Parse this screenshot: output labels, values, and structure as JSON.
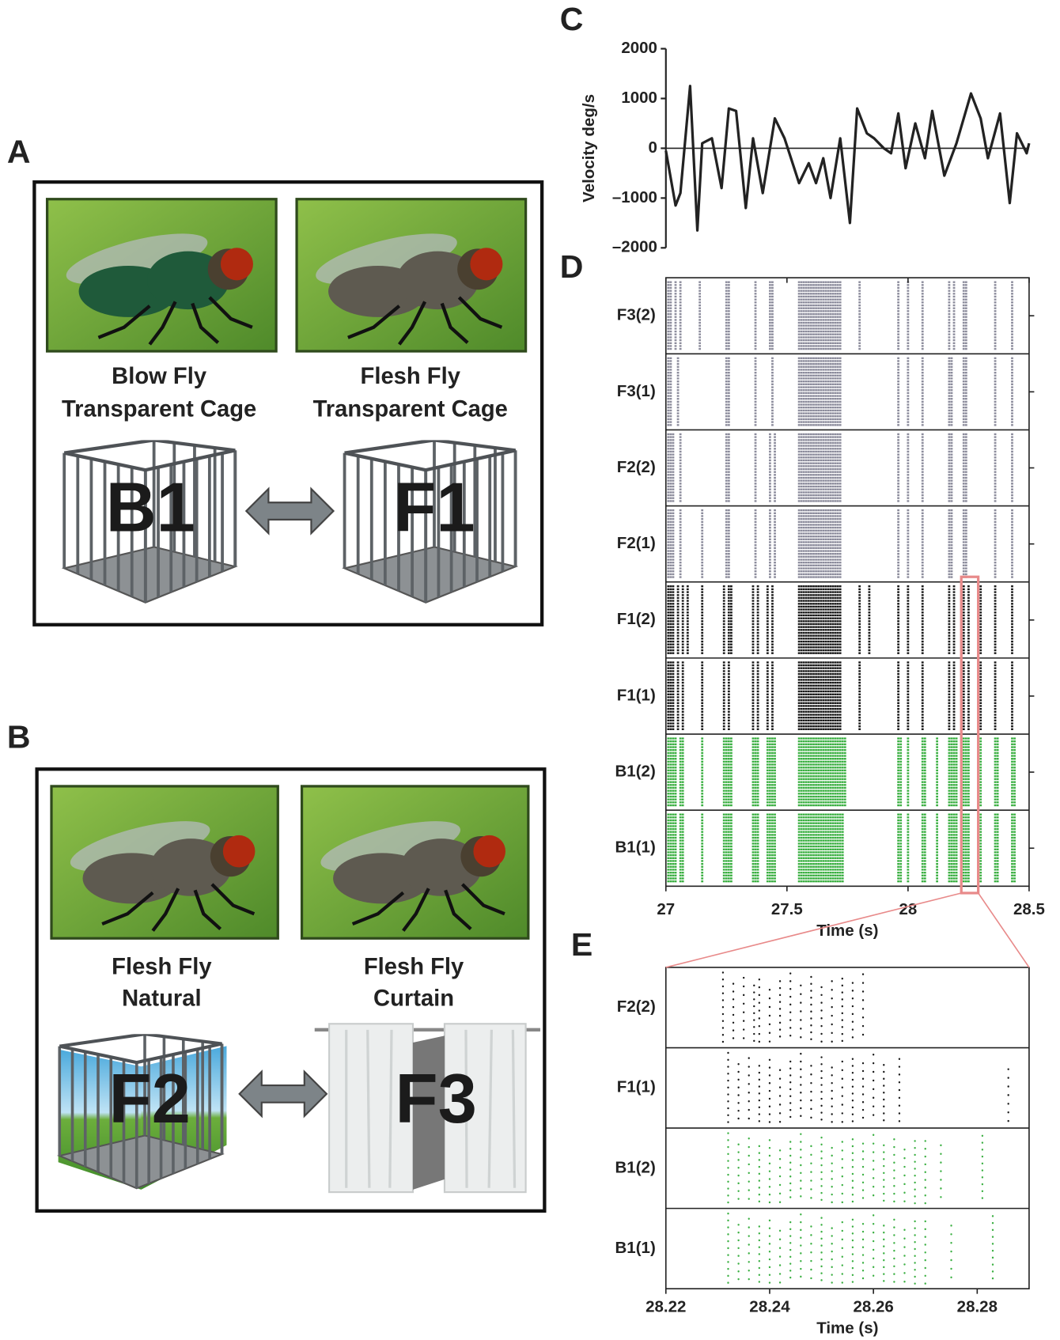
{
  "figure": {
    "panel_labels": [
      "A",
      "B",
      "C",
      "D",
      "E"
    ]
  },
  "panel_a": {
    "left": {
      "title": "Blow Fly",
      "subtitle": "Transparent Cage",
      "cage": "B1"
    },
    "right": {
      "title": "Flesh Fly",
      "subtitle": "Transparent Cage",
      "cage": "F1"
    }
  },
  "panel_b": {
    "left": {
      "title": "Flesh Fly",
      "subtitle": "Natural",
      "cage": "F2"
    },
    "right": {
      "title": "Flesh Fly",
      "subtitle": "Curtain",
      "cage": "F3"
    }
  },
  "chart_data": [
    {
      "type": "line",
      "ylabel": "Velocity deg/s",
      "color": "#222222",
      "x": [
        27.0,
        27.04,
        27.06,
        27.1,
        27.13,
        27.15,
        27.19,
        27.23,
        27.26,
        27.29,
        27.33,
        27.36,
        27.4,
        27.45,
        27.49,
        27.55,
        27.59,
        27.62,
        27.65,
        27.68,
        27.72,
        27.76,
        27.79,
        27.83,
        27.86,
        27.9,
        27.93,
        27.96,
        27.99,
        28.03,
        28.07,
        28.1,
        28.15,
        28.2,
        28.26,
        28.3,
        28.33,
        28.38,
        28.42,
        28.45,
        28.49,
        28.5
      ],
      "values": [
        -50,
        -1150,
        -900,
        1250,
        -1650,
        100,
        200,
        -800,
        800,
        750,
        -1200,
        200,
        -900,
        600,
        200,
        -700,
        -300,
        -700,
        -200,
        -1000,
        200,
        -1500,
        800,
        300,
        200,
        0,
        -100,
        700,
        -400,
        500,
        -200,
        750,
        -550,
        100,
        1100,
        600,
        -200,
        700,
        -1100,
        300,
        -100,
        100
      ],
      "xlim": [
        27,
        28.5
      ],
      "ylim": [
        -2000,
        2000
      ],
      "yticks": [
        {
          "value": -2000,
          "label": "–2000"
        },
        {
          "value": -1000,
          "label": "–1000"
        },
        0,
        1000,
        2000
      ]
    },
    {
      "type": "raster",
      "xlabel": "Time (s)",
      "xlim": [
        27,
        28.5
      ],
      "xticks": [
        27,
        27.5,
        28,
        28.5
      ],
      "series": [
        {
          "name": "F3(2)",
          "color": "#8c8c9c",
          "values": [
            27.01,
            27.02,
            27.04,
            27.06,
            27.14,
            27.25,
            27.26,
            27.37,
            27.43,
            27.44,
            27.55,
            27.56,
            27.57,
            27.58,
            27.59,
            27.6,
            27.61,
            27.62,
            27.63,
            27.64,
            27.65,
            27.66,
            27.67,
            27.68,
            27.69,
            27.7,
            27.71,
            27.72,
            27.8,
            27.96,
            28.0,
            28.06,
            28.17,
            28.19,
            28.23,
            28.24,
            28.36,
            28.43
          ]
        },
        {
          "name": "F3(1)",
          "color": "#8c8c9c",
          "values": [
            27.01,
            27.02,
            27.05,
            27.25,
            27.26,
            27.37,
            27.44,
            27.55,
            27.56,
            27.57,
            27.58,
            27.59,
            27.6,
            27.61,
            27.62,
            27.63,
            27.64,
            27.65,
            27.66,
            27.67,
            27.68,
            27.69,
            27.7,
            27.71,
            27.72,
            27.96,
            28.0,
            28.06,
            28.17,
            28.18,
            28.23,
            28.24,
            28.36,
            28.43
          ]
        },
        {
          "name": "F2(2)",
          "color": "#8c8c9c",
          "values": [
            27.01,
            27.02,
            27.03,
            27.06,
            27.25,
            27.26,
            27.37,
            27.43,
            27.45,
            27.55,
            27.56,
            27.57,
            27.58,
            27.59,
            27.6,
            27.61,
            27.62,
            27.63,
            27.64,
            27.65,
            27.66,
            27.67,
            27.68,
            27.69,
            27.7,
            27.71,
            27.72,
            27.96,
            28.0,
            28.06,
            28.17,
            28.18,
            28.23,
            28.24,
            28.36,
            28.43
          ]
        },
        {
          "name": "F2(1)",
          "color": "#8c8c9c",
          "values": [
            27.01,
            27.02,
            27.03,
            27.06,
            27.15,
            27.25,
            27.26,
            27.37,
            27.43,
            27.45,
            27.55,
            27.56,
            27.57,
            27.58,
            27.59,
            27.6,
            27.61,
            27.62,
            27.63,
            27.64,
            27.65,
            27.66,
            27.67,
            27.68,
            27.69,
            27.7,
            27.71,
            27.72,
            27.96,
            28.0,
            28.06,
            28.17,
            28.18,
            28.23,
            28.24,
            28.36,
            28.43
          ]
        },
        {
          "name": "F1(2)",
          "color": "#1a1a1a",
          "values": [
            27.01,
            27.02,
            27.03,
            27.05,
            27.07,
            27.09,
            27.15,
            27.24,
            27.26,
            27.27,
            27.36,
            27.38,
            27.42,
            27.44,
            27.55,
            27.56,
            27.57,
            27.58,
            27.59,
            27.6,
            27.61,
            27.62,
            27.63,
            27.64,
            27.65,
            27.66,
            27.67,
            27.68,
            27.69,
            27.7,
            27.71,
            27.72,
            27.8,
            27.84,
            27.96,
            28.0,
            28.06,
            28.17,
            28.19,
            28.23,
            28.25,
            28.3,
            28.36,
            28.43
          ]
        },
        {
          "name": "F1(1)",
          "color": "#1a1a1a",
          "values": [
            27.01,
            27.02,
            27.03,
            27.05,
            27.07,
            27.15,
            27.24,
            27.26,
            27.36,
            27.38,
            27.42,
            27.44,
            27.55,
            27.56,
            27.57,
            27.58,
            27.59,
            27.6,
            27.61,
            27.62,
            27.63,
            27.64,
            27.65,
            27.66,
            27.67,
            27.68,
            27.69,
            27.7,
            27.71,
            27.72,
            27.8,
            27.96,
            28.0,
            28.06,
            28.17,
            28.19,
            28.23,
            28.25,
            28.3,
            28.36,
            28.43
          ]
        },
        {
          "name": "B1(2)",
          "color": "#3cb043",
          "values": [
            27.01,
            27.02,
            27.03,
            27.04,
            27.06,
            27.07,
            27.15,
            27.24,
            27.25,
            27.26,
            27.27,
            27.36,
            27.37,
            27.38,
            27.42,
            27.43,
            27.44,
            27.45,
            27.55,
            27.56,
            27.57,
            27.58,
            27.59,
            27.6,
            27.61,
            27.62,
            27.63,
            27.64,
            27.65,
            27.66,
            27.67,
            27.68,
            27.69,
            27.7,
            27.71,
            27.72,
            27.73,
            27.74,
            27.96,
            27.97,
            28.0,
            28.06,
            28.07,
            28.12,
            28.17,
            28.18,
            28.19,
            28.2,
            28.23,
            28.24,
            28.25,
            28.3,
            28.36,
            28.37,
            28.43,
            28.44
          ]
        },
        {
          "name": "B1(1)",
          "color": "#3cb043",
          "values": [
            27.01,
            27.02,
            27.03,
            27.04,
            27.06,
            27.07,
            27.15,
            27.24,
            27.25,
            27.26,
            27.27,
            27.36,
            27.37,
            27.38,
            27.42,
            27.43,
            27.44,
            27.45,
            27.55,
            27.56,
            27.57,
            27.58,
            27.59,
            27.6,
            27.61,
            27.62,
            27.63,
            27.64,
            27.65,
            27.66,
            27.67,
            27.68,
            27.69,
            27.7,
            27.71,
            27.72,
            27.73,
            27.96,
            27.97,
            28.0,
            28.06,
            28.07,
            28.12,
            28.17,
            28.18,
            28.19,
            28.2,
            28.23,
            28.24,
            28.25,
            28.3,
            28.36,
            28.37,
            28.43,
            28.44
          ]
        }
      ]
    },
    {
      "type": "raster-dots",
      "xlabel": "Time (s)",
      "xlim": [
        28.22,
        28.29
      ],
      "xticks": [
        28.22,
        28.24,
        28.26,
        28.28
      ],
      "series": [
        {
          "name": "F2(2)",
          "color": "#1a1a1a",
          "values": [
            28.231,
            28.233,
            28.235,
            28.237,
            28.238,
            28.24,
            28.242,
            28.244,
            28.246,
            28.248,
            28.25,
            28.252,
            28.254,
            28.256,
            28.258
          ]
        },
        {
          "name": "F1(1)",
          "color": "#1a1a1a",
          "values": [
            28.232,
            28.234,
            28.236,
            28.238,
            28.24,
            28.242,
            28.244,
            28.246,
            28.248,
            28.25,
            28.252,
            28.254,
            28.256,
            28.258,
            28.26,
            28.262,
            28.265,
            28.286
          ]
        },
        {
          "name": "B1(2)",
          "color": "#3cb043",
          "values": [
            28.232,
            28.234,
            28.236,
            28.238,
            28.24,
            28.242,
            28.244,
            28.246,
            28.248,
            28.25,
            28.252,
            28.254,
            28.256,
            28.258,
            28.26,
            28.262,
            28.264,
            28.266,
            28.268,
            28.27,
            28.273,
            28.281
          ]
        },
        {
          "name": "B1(1)",
          "color": "#3cb043",
          "values": [
            28.232,
            28.234,
            28.236,
            28.238,
            28.24,
            28.242,
            28.244,
            28.246,
            28.248,
            28.25,
            28.252,
            28.254,
            28.256,
            28.258,
            28.26,
            28.262,
            28.264,
            28.266,
            28.268,
            28.27,
            28.275,
            28.283
          ]
        }
      ]
    }
  ]
}
